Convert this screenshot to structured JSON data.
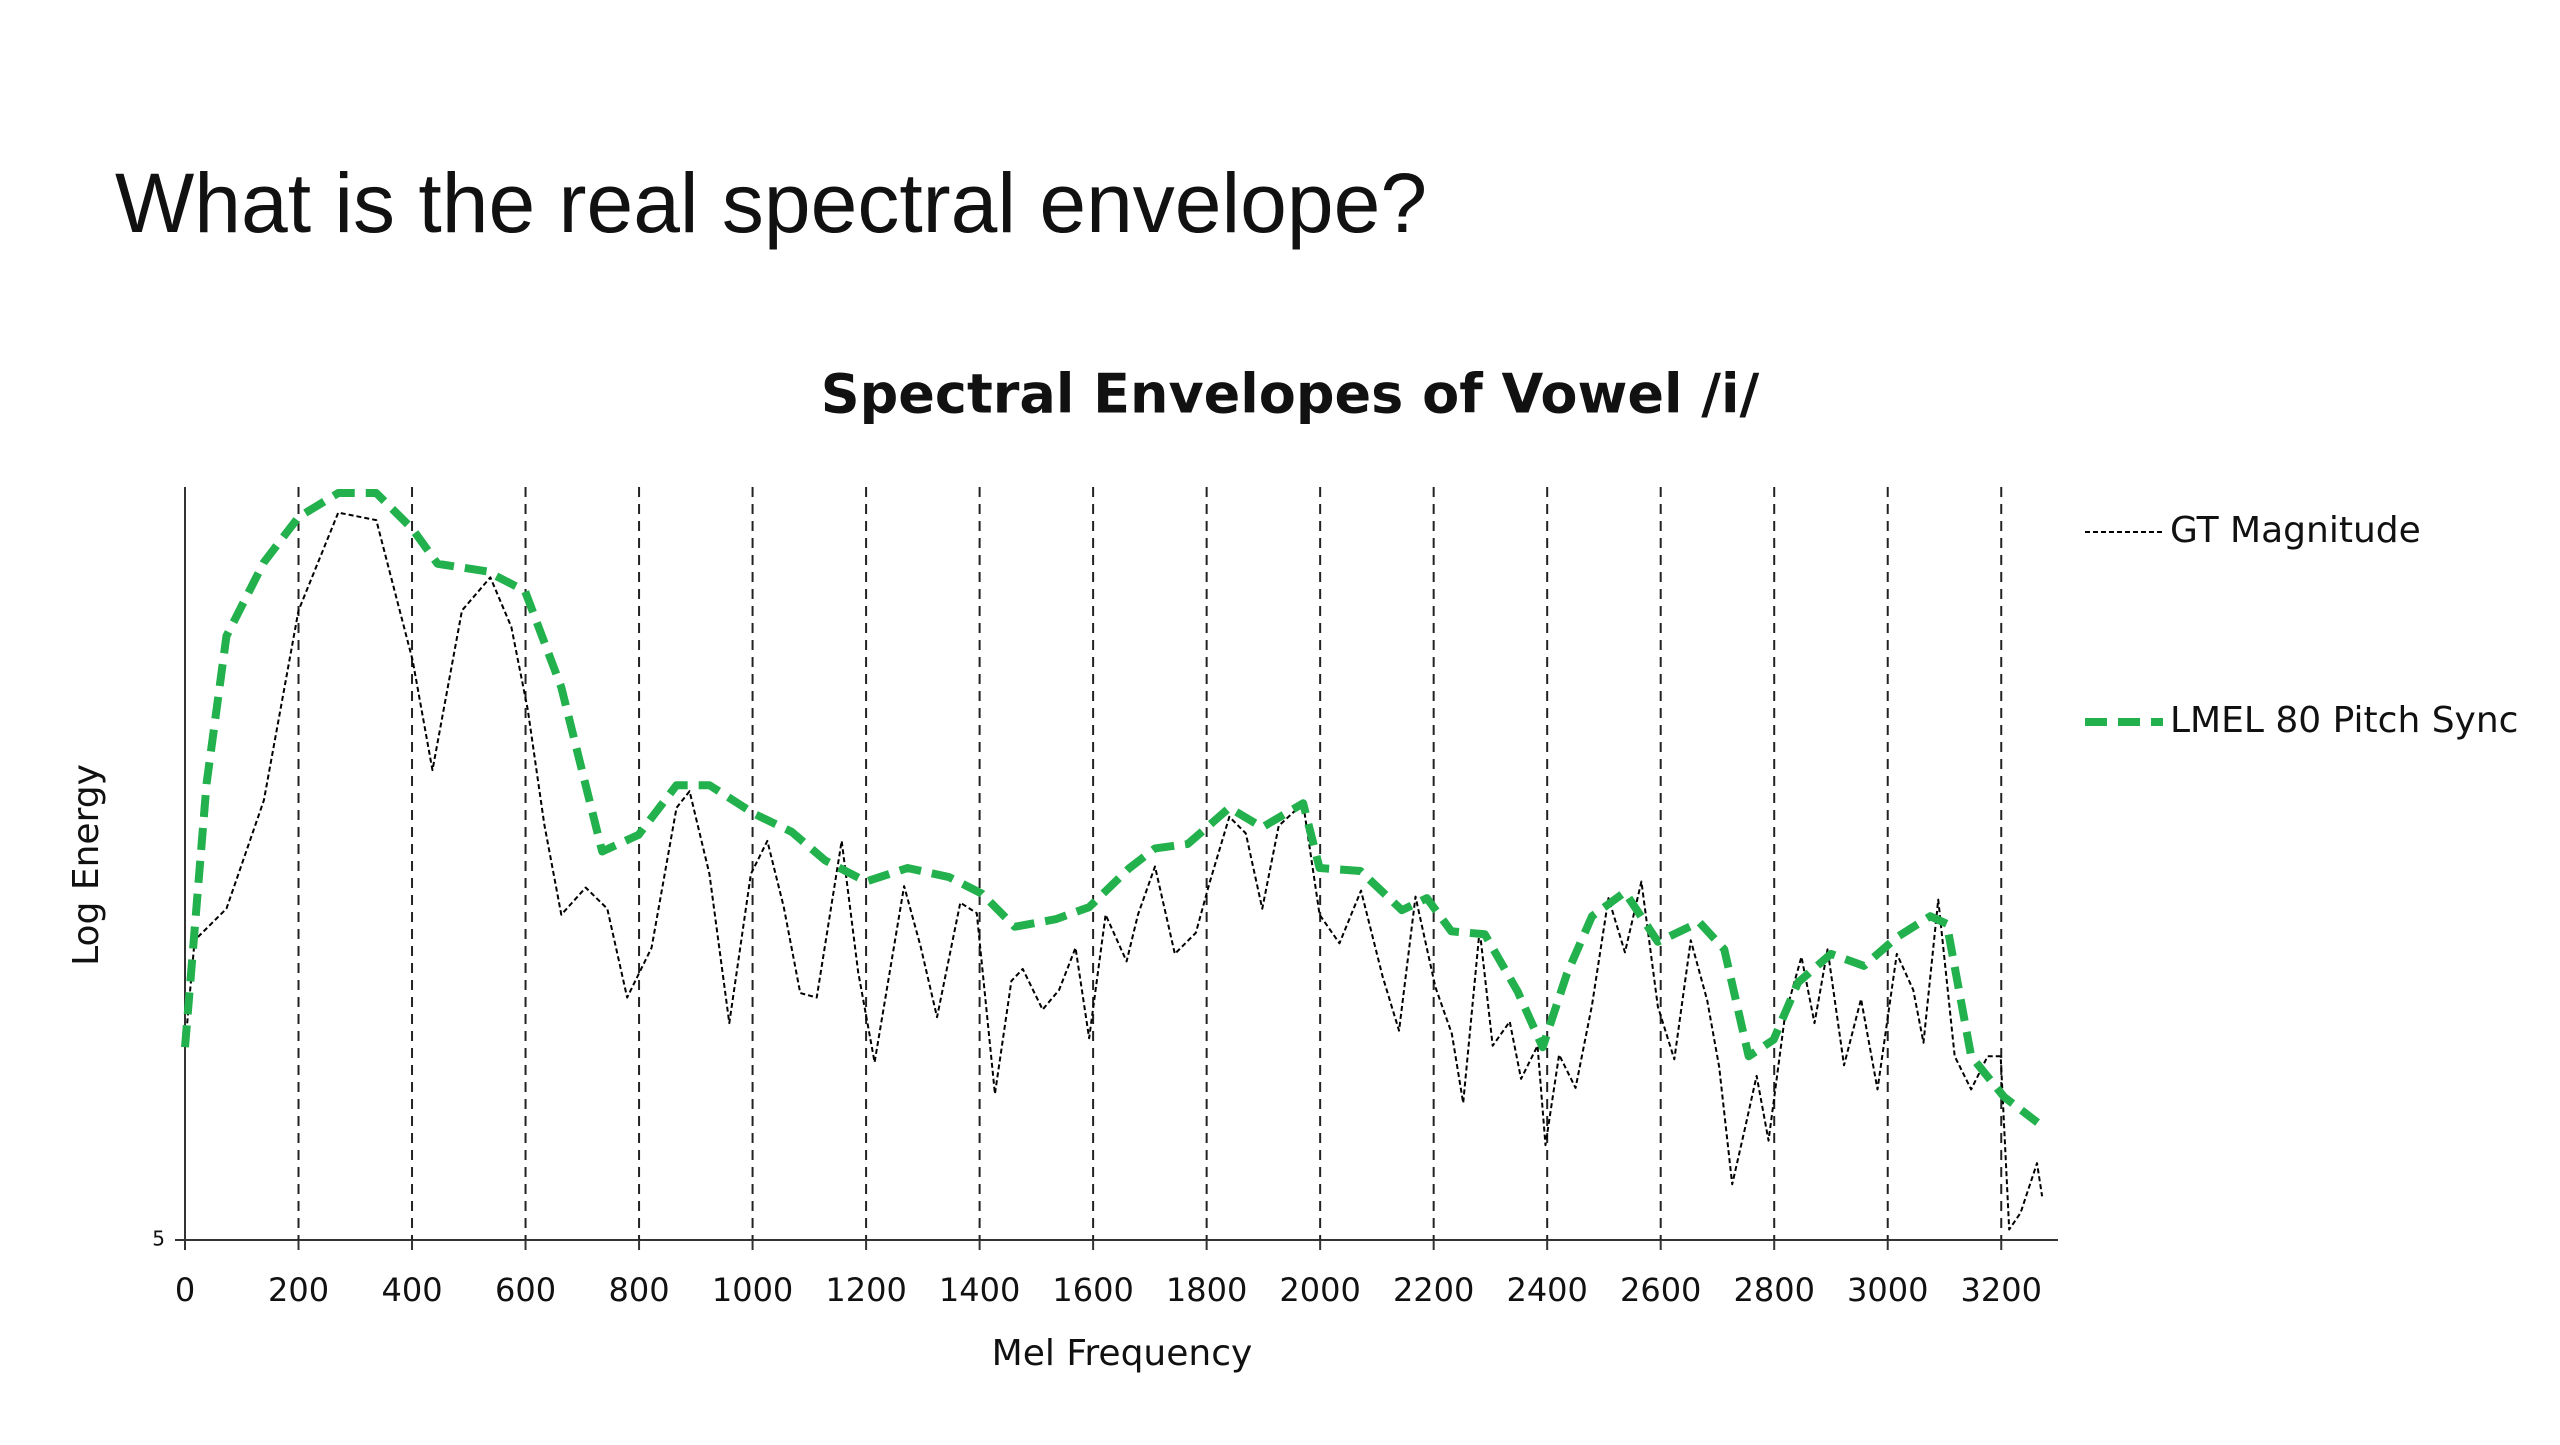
{
  "slide_title": "What is the real spectral envelope?",
  "chart_data": {
    "type": "line",
    "title": "Spectral Envelopes of Vowel /i/",
    "x_label": "Mel Frequency",
    "y_label": "Log Energy",
    "xlim": [
      0,
      3300
    ],
    "xticks": [
      0,
      200,
      400,
      600,
      800,
      1000,
      1200,
      1400,
      1600,
      1800,
      2000,
      2200,
      2400,
      2600,
      2800,
      3000,
      3200
    ],
    "ylim": [
      5,
      10
    ],
    "yticks": [
      5
    ],
    "grid": "x",
    "legend": "right",
    "series": [
      {
        "name": "GT Magnitude",
        "color": "#000000",
        "style": "thin-dash",
        "x": [
          0,
          17,
          73,
          139,
          200,
          270,
          337,
          401,
          436,
          488,
          538,
          575,
          604,
          633,
          663,
          706,
          744,
          779,
          822,
          866,
          889,
          924,
          959,
          997,
          1026,
          1055,
          1084,
          1113,
          1157,
          1186,
          1215,
          1267,
          1296,
          1325,
          1366,
          1395,
          1427,
          1456,
          1476,
          1511,
          1540,
          1569,
          1593,
          1622,
          1659,
          1679,
          1709,
          1744,
          1781,
          1805,
          1840,
          1869,
          1898,
          1927,
          1970,
          1999,
          2034,
          2072,
          2110,
          2139,
          2168,
          2203,
          2232,
          2252,
          2281,
          2304,
          2334,
          2354,
          2383,
          2397,
          2421,
          2450,
          2479,
          2508,
          2537,
          2566,
          2595,
          2624,
          2653,
          2682,
          2703,
          2726,
          2749,
          2769,
          2790,
          2819,
          2848,
          2871,
          2894,
          2923,
          2953,
          2982,
          3016,
          3045,
          3063,
          3089,
          3118,
          3147,
          3176,
          3199,
          3214,
          3234,
          3263,
          3272
        ],
        "values": [
          6.28,
          6.99,
          7.2,
          7.92,
          9.18,
          9.83,
          9.78,
          8.85,
          8.12,
          9.18,
          9.4,
          9.07,
          8.52,
          7.76,
          7.16,
          7.34,
          7.2,
          6.61,
          6.94,
          7.87,
          7.98,
          7.43,
          6.44,
          7.43,
          7.65,
          7.21,
          6.64,
          6.61,
          7.65,
          6.78,
          6.18,
          7.35,
          6.95,
          6.48,
          7.24,
          7.17,
          5.97,
          6.72,
          6.8,
          6.53,
          6.66,
          6.94,
          6.34,
          7.16,
          6.85,
          7.16,
          7.48,
          6.9,
          7.04,
          7.37,
          7.81,
          7.7,
          7.2,
          7.75,
          7.9,
          7.16,
          6.97,
          7.32,
          6.75,
          6.39,
          7.28,
          6.68,
          6.37,
          5.91,
          7.06,
          6.29,
          6.45,
          6.07,
          6.29,
          5.63,
          6.23,
          6.01,
          6.56,
          7.27,
          6.91,
          7.38,
          6.55,
          6.2,
          6.99,
          6.59,
          6.15,
          5.37,
          5.75,
          6.09,
          5.66,
          6.49,
          6.88,
          6.44,
          6.93,
          6.16,
          6.6,
          6.0,
          6.9,
          6.66,
          6.31,
          7.26,
          6.22,
          6.0,
          6.22,
          6.22,
          5.07,
          5.18,
          5.51,
          5.29
        ]
      },
      {
        "name": "LMEL 80 Pitch Sync",
        "color": "#22b14c",
        "style": "thick-dash",
        "x": [
          0,
          38,
          73,
          139,
          200,
          270,
          337,
          401,
          445,
          532,
          599,
          663,
          735,
          799,
          866,
          924,
          1003,
          1069,
          1128,
          1200,
          1273,
          1346,
          1404,
          1462,
          1534,
          1593,
          1664,
          1709,
          1767,
          1840,
          1898,
          1970,
          1999,
          2071,
          2144,
          2188,
          2231,
          2290,
          2348,
          2392,
          2435,
          2479,
          2537,
          2595,
          2668,
          2712,
          2755,
          2799,
          2842,
          2900,
          2958,
          3016,
          3075,
          3104,
          3147,
          3205,
          3264
        ],
        "values": [
          6.28,
          8.03,
          9.01,
          9.5,
          9.8,
          9.96,
          9.96,
          9.72,
          9.49,
          9.44,
          9.31,
          8.67,
          7.58,
          7.69,
          8.02,
          8.02,
          7.83,
          7.71,
          7.52,
          7.38,
          7.47,
          7.41,
          7.3,
          7.08,
          7.13,
          7.21,
          7.47,
          7.6,
          7.63,
          7.87,
          7.74,
          7.9,
          7.47,
          7.45,
          7.19,
          7.27,
          7.05,
          7.03,
          6.65,
          6.28,
          6.77,
          7.15,
          7.31,
          6.98,
          7.11,
          6.93,
          6.22,
          6.33,
          6.71,
          6.9,
          6.82,
          7.01,
          7.15,
          7.1,
          6.22,
          5.95,
          5.78
        ]
      }
    ]
  }
}
